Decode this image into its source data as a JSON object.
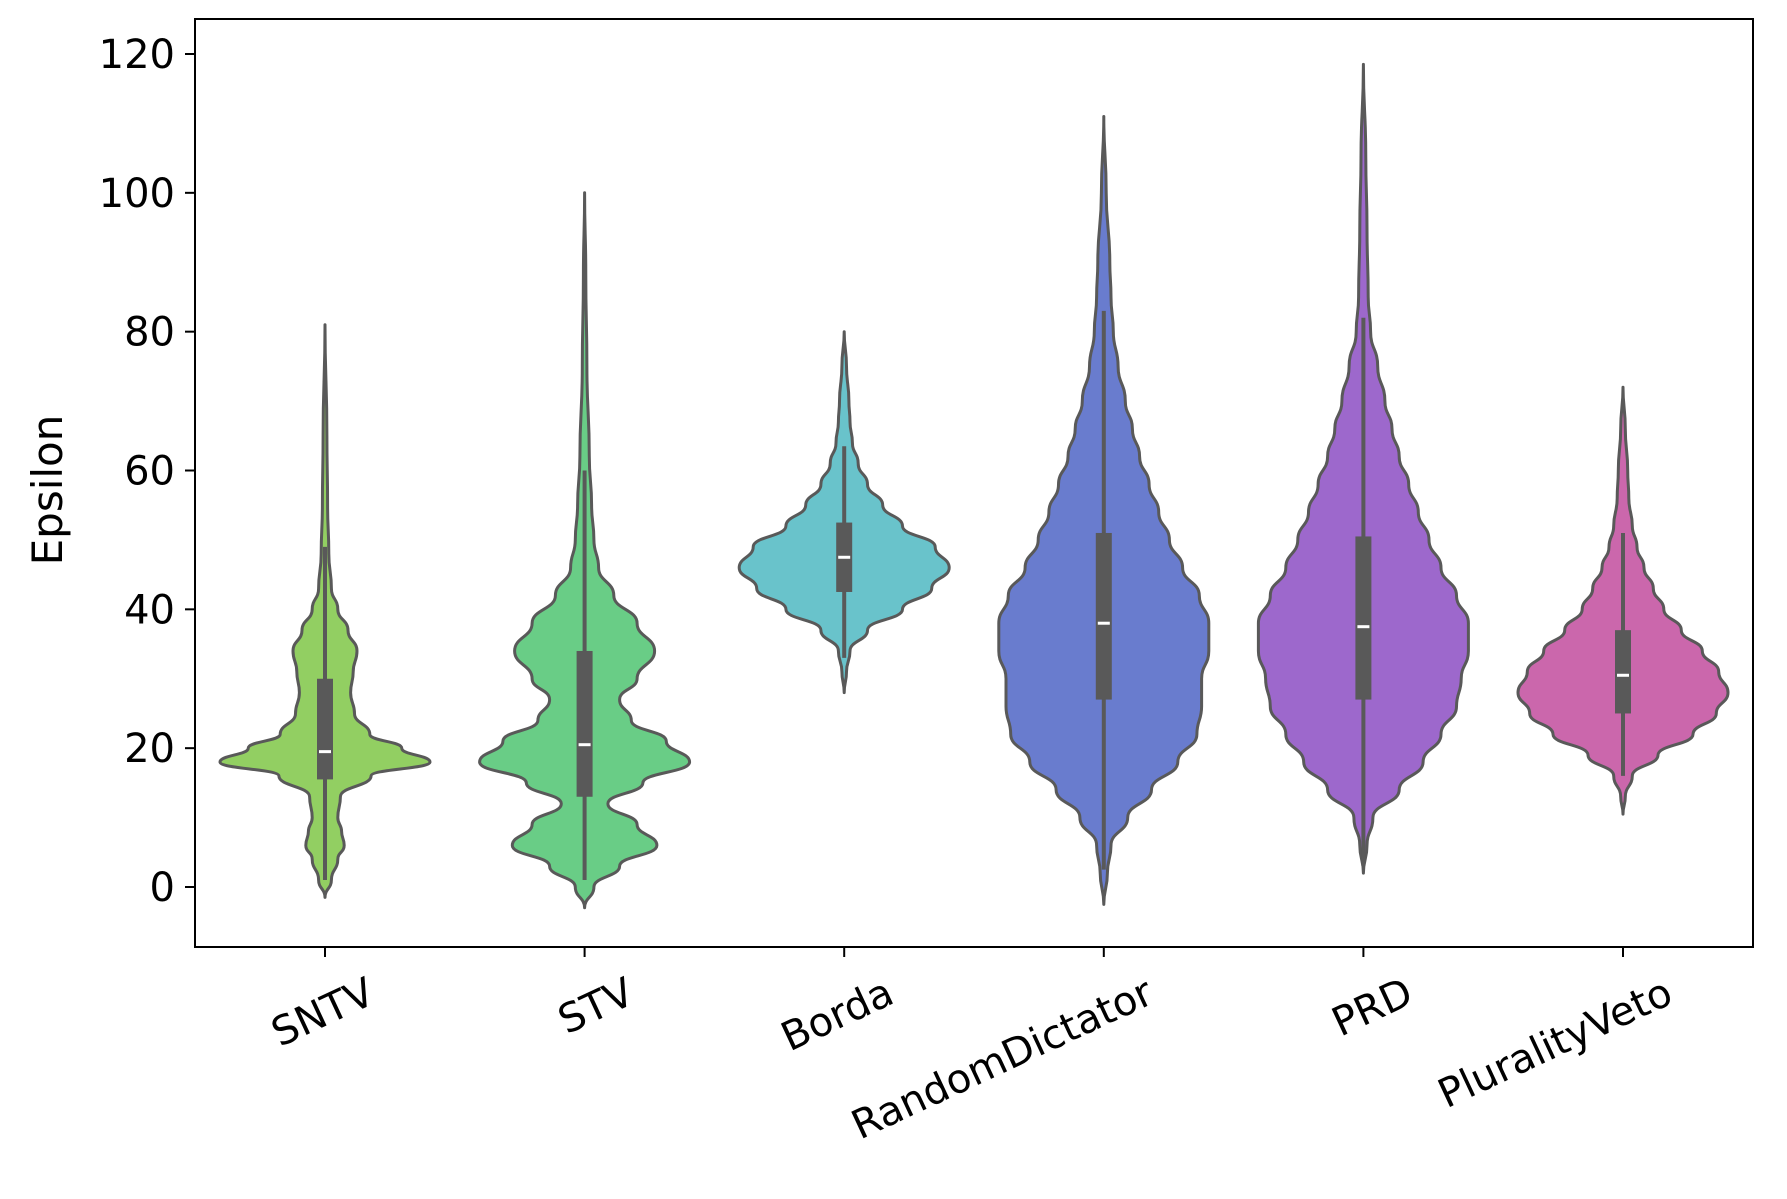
{
  "chart_data": {
    "type": "violin",
    "title": "",
    "xlabel": "",
    "ylabel": "Epsilon",
    "ylim": [
      -9,
      125
    ],
    "yticks": [
      0,
      20,
      40,
      60,
      80,
      100,
      120
    ],
    "grid": false,
    "legend": "none",
    "categories": [
      "SNTV",
      "STV",
      "Borda",
      "RandomDictator",
      "PRD",
      "PluralityVeto"
    ],
    "series": [
      {
        "category": "SNTV",
        "color": "#92cf62",
        "min": -1.5,
        "max": 81,
        "q1": 15.5,
        "median": 19.5,
        "q3": 30,
        "whisker_low": 1,
        "whisker_high": 49,
        "density": [
          [
            -1.5,
            0
          ],
          [
            1,
            5
          ],
          [
            4,
            10
          ],
          [
            6,
            15
          ],
          [
            8,
            13
          ],
          [
            10,
            10
          ],
          [
            13,
            12
          ],
          [
            16,
            36
          ],
          [
            18,
            82
          ],
          [
            20,
            60
          ],
          [
            22,
            35
          ],
          [
            25,
            23
          ],
          [
            28,
            20
          ],
          [
            31,
            22
          ],
          [
            34,
            25
          ],
          [
            37,
            18
          ],
          [
            40,
            10
          ],
          [
            43,
            5
          ],
          [
            48,
            3
          ],
          [
            55,
            2
          ],
          [
            65,
            1.5
          ],
          [
            81,
            0
          ]
        ]
      },
      {
        "category": "STV",
        "color": "#69cd86",
        "min": -3,
        "max": 100,
        "q1": 13,
        "median": 20.5,
        "q3": 34,
        "whisker_low": 1,
        "whisker_high": 60,
        "density": [
          [
            -3,
            0
          ],
          [
            0,
            8
          ],
          [
            3,
            30
          ],
          [
            6,
            62
          ],
          [
            9,
            45
          ],
          [
            12,
            20
          ],
          [
            15,
            50
          ],
          [
            18,
            90
          ],
          [
            21,
            70
          ],
          [
            24,
            40
          ],
          [
            27,
            30
          ],
          [
            30,
            45
          ],
          [
            34,
            60
          ],
          [
            38,
            45
          ],
          [
            42,
            25
          ],
          [
            46,
            12
          ],
          [
            50,
            8
          ],
          [
            55,
            6
          ],
          [
            62,
            4
          ],
          [
            75,
            2
          ],
          [
            88,
            1
          ],
          [
            100,
            0
          ]
        ]
      },
      {
        "category": "Borda",
        "color": "#69c3cb",
        "min": 28,
        "max": 80,
        "q1": 42.5,
        "median": 47.5,
        "q3": 52.5,
        "whisker_low": 33,
        "whisker_high": 63.5,
        "density": [
          [
            28,
            0
          ],
          [
            31,
            2
          ],
          [
            34,
            5
          ],
          [
            37,
            20
          ],
          [
            40,
            50
          ],
          [
            43,
            75
          ],
          [
            46,
            90
          ],
          [
            49,
            78
          ],
          [
            52,
            50
          ],
          [
            55,
            33
          ],
          [
            58,
            20
          ],
          [
            61,
            12
          ],
          [
            64,
            7
          ],
          [
            67,
            5
          ],
          [
            70,
            4
          ],
          [
            75,
            2
          ],
          [
            80,
            0
          ]
        ]
      },
      {
        "category": "RandomDictator",
        "color": "#697cce",
        "min": -2.5,
        "max": 111,
        "q1": 27,
        "median": 38,
        "q3": 51,
        "whisker_low": 2.5,
        "whisker_high": 83,
        "density": [
          [
            -2.5,
            0
          ],
          [
            2,
            3
          ],
          [
            6,
            6
          ],
          [
            10,
            20
          ],
          [
            14,
            40
          ],
          [
            18,
            62
          ],
          [
            22,
            78
          ],
          [
            26,
            82
          ],
          [
            30,
            82
          ],
          [
            34,
            88
          ],
          [
            38,
            88
          ],
          [
            42,
            80
          ],
          [
            46,
            66
          ],
          [
            50,
            55
          ],
          [
            54,
            46
          ],
          [
            58,
            38
          ],
          [
            62,
            30
          ],
          [
            66,
            24
          ],
          [
            70,
            18
          ],
          [
            75,
            12
          ],
          [
            80,
            8
          ],
          [
            85,
            6
          ],
          [
            90,
            5
          ],
          [
            100,
            2
          ],
          [
            111,
            0
          ]
        ]
      },
      {
        "category": "PRD",
        "color": "#9d68cc",
        "min": 2,
        "max": 118.5,
        "q1": 27,
        "median": 37.5,
        "q3": 50.5,
        "whisker_low": 3,
        "whisker_high": 82,
        "density": [
          [
            2,
            0
          ],
          [
            6,
            3
          ],
          [
            10,
            8
          ],
          [
            14,
            30
          ],
          [
            18,
            50
          ],
          [
            22,
            65
          ],
          [
            26,
            78
          ],
          [
            30,
            82
          ],
          [
            34,
            88
          ],
          [
            38,
            88
          ],
          [
            42,
            78
          ],
          [
            46,
            65
          ],
          [
            50,
            55
          ],
          [
            54,
            46
          ],
          [
            58,
            38
          ],
          [
            62,
            30
          ],
          [
            66,
            24
          ],
          [
            70,
            18
          ],
          [
            75,
            12
          ],
          [
            80,
            6
          ],
          [
            85,
            4
          ],
          [
            95,
            3
          ],
          [
            105,
            2
          ],
          [
            118.5,
            0
          ]
        ]
      },
      {
        "category": "PluralityVeto",
        "color": "#cb67ac",
        "min": 10.5,
        "max": 72,
        "q1": 25,
        "median": 30.5,
        "q3": 37,
        "whisker_low": 16,
        "whisker_high": 51,
        "density": [
          [
            10.5,
            0
          ],
          [
            13,
            2
          ],
          [
            16,
            8
          ],
          [
            19,
            30
          ],
          [
            22,
            60
          ],
          [
            25,
            80
          ],
          [
            28,
            90
          ],
          [
            31,
            82
          ],
          [
            34,
            68
          ],
          [
            37,
            50
          ],
          [
            40,
            35
          ],
          [
            43,
            26
          ],
          [
            46,
            18
          ],
          [
            49,
            12
          ],
          [
            52,
            8
          ],
          [
            56,
            5
          ],
          [
            60,
            4
          ],
          [
            66,
            2
          ],
          [
            72,
            0
          ]
        ]
      }
    ]
  }
}
